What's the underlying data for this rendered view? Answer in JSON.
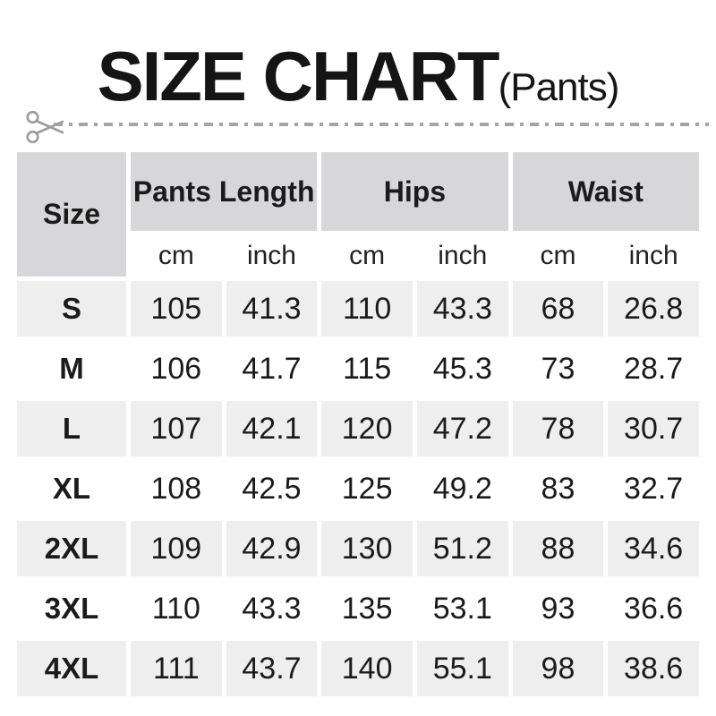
{
  "title": {
    "main": "SIZE CHART",
    "suffix": "(Pants)"
  },
  "cut_line": {
    "icon": "scissors-icon"
  },
  "colors": {
    "header_gray": "#d7d7d9",
    "row_gray": "#eeeeef",
    "text": "#1b1b1b",
    "cutline_gray": "#a4a4a4",
    "background": "#ffffff"
  },
  "table": {
    "corner_header": "Size",
    "group_headers": [
      "Pants Length",
      "Hips",
      "Waist"
    ],
    "unit_headers": [
      "cm",
      "inch",
      "cm",
      "inch",
      "cm",
      "inch"
    ],
    "rows": [
      {
        "size": "S",
        "values": [
          "105",
          "41.3",
          "110",
          "43.3",
          "68",
          "26.8"
        ]
      },
      {
        "size": "M",
        "values": [
          "106",
          "41.7",
          "115",
          "45.3",
          "73",
          "28.7"
        ]
      },
      {
        "size": "L",
        "values": [
          "107",
          "42.1",
          "120",
          "47.2",
          "78",
          "30.7"
        ]
      },
      {
        "size": "XL",
        "values": [
          "108",
          "42.5",
          "125",
          "49.2",
          "83",
          "32.7"
        ]
      },
      {
        "size": "2XL",
        "values": [
          "109",
          "42.9",
          "130",
          "51.2",
          "88",
          "34.6"
        ]
      },
      {
        "size": "3XL",
        "values": [
          "110",
          "43.3",
          "135",
          "53.1",
          "93",
          "36.6"
        ]
      },
      {
        "size": "4XL",
        "values": [
          "111",
          "43.7",
          "140",
          "55.1",
          "98",
          "38.6"
        ]
      }
    ]
  },
  "chart_data": {
    "type": "table",
    "title": "SIZE CHART (Pants)",
    "columns": [
      "Size",
      "Pants Length cm",
      "Pants Length inch",
      "Hips cm",
      "Hips inch",
      "Waist cm",
      "Waist inch"
    ],
    "rows": [
      [
        "S",
        105,
        41.3,
        110,
        43.3,
        68,
        26.8
      ],
      [
        "M",
        106,
        41.7,
        115,
        45.3,
        73,
        28.7
      ],
      [
        "L",
        107,
        42.1,
        120,
        47.2,
        78,
        30.7
      ],
      [
        "XL",
        108,
        42.5,
        125,
        49.2,
        83,
        32.7
      ],
      [
        "2XL",
        109,
        42.9,
        130,
        51.2,
        88,
        34.6
      ],
      [
        "3XL",
        110,
        43.3,
        135,
        53.1,
        93,
        36.6
      ],
      [
        "4XL",
        111,
        43.7,
        140,
        55.1,
        98,
        38.6
      ]
    ]
  }
}
